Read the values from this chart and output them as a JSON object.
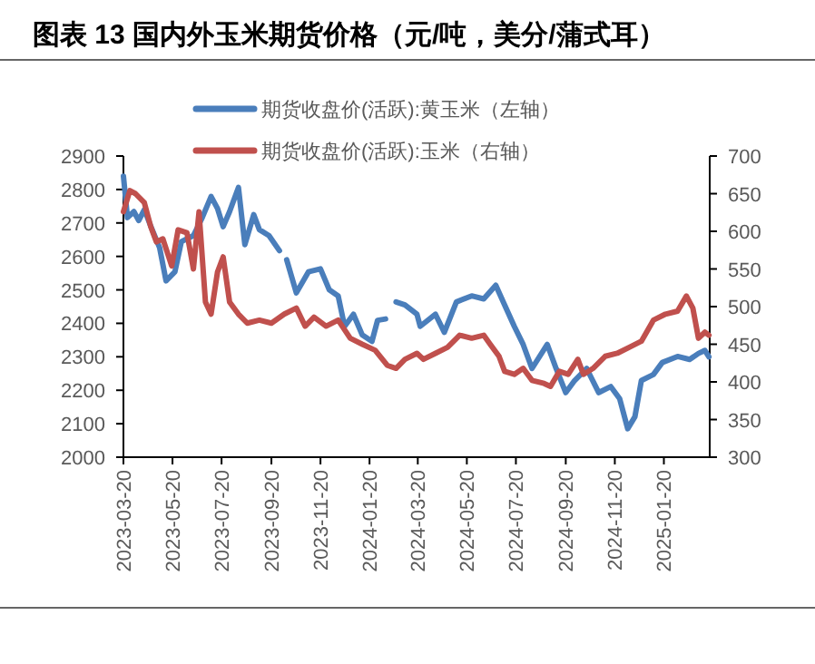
{
  "chart_data": {
    "type": "line",
    "title": "图表 13 国内外玉米期货价格（元/吨，美分/蒲式耳）",
    "legend": "top",
    "line_style": "solid",
    "xlim": [
      "2023-03-20",
      "2025-03-18"
    ],
    "xticks": [
      "2023-03-20",
      "2023-05-20",
      "2023-07-20",
      "2023-09-20",
      "2023-11-20",
      "2024-01-20",
      "2024-03-20",
      "2024-05-20",
      "2024-07-20",
      "2024-09-20",
      "2024-11-20",
      "2025-01-20"
    ],
    "ylim": [
      2000,
      2900
    ],
    "yticks": [
      2000,
      2100,
      2200,
      2300,
      2400,
      2500,
      2600,
      2700,
      2800,
      2900
    ],
    "y2lim": [
      300,
      700
    ],
    "y2ticks": [
      300,
      350,
      400,
      450,
      500,
      550,
      600,
      650,
      700
    ],
    "series": [
      {
        "name": "期货收盘价(活跃):黄玉米（左轴）",
        "color": "#4a7ebb",
        "x": [
          "2023-03-20",
          "2023-03-25",
          "2023-04-02",
          "2023-04-08",
          "2023-04-15",
          "2023-04-23",
          "2023-05-04",
          "2023-05-12",
          "2023-05-23",
          "2023-05-31",
          "2023-06-15",
          "2023-06-26",
          "2023-07-07",
          "2023-07-15",
          "2023-07-22",
          "2023-07-30",
          "2023-08-10",
          "2023-08-18",
          "2023-08-29",
          "2023-09-05",
          "2023-09-17",
          "2023-09-30",
          "2023-10-05",
          "2023-10-09",
          "2023-10-21",
          "2023-11-05",
          "2023-11-20",
          "2023-12-01",
          "2023-12-12",
          "2023-12-20",
          "2023-12-31",
          "2024-01-11",
          "2024-01-23",
          "2024-01-30",
          "2024-02-09",
          "2024-02-14",
          "2024-02-22",
          "2024-03-04",
          "2024-03-19",
          "2024-03-23",
          "2024-04-11",
          "2024-04-22",
          "2024-05-07",
          "2024-05-26",
          "2024-06-10",
          "2024-06-25",
          "2024-07-06",
          "2024-07-18",
          "2024-07-29",
          "2024-08-09",
          "2024-08-28",
          "2024-09-08",
          "2024-09-20",
          "2024-10-01",
          "2024-10-16",
          "2024-10-31",
          "2024-11-15",
          "2024-11-26",
          "2024-12-06",
          "2024-12-15",
          "2024-12-23",
          "2025-01-07",
          "2025-01-18",
          "2025-02-06",
          "2025-02-21",
          "2025-03-04",
          "2025-03-12",
          "2025-03-17"
        ],
        "values": [
          2840,
          2716,
          2734,
          2707,
          2740,
          2690,
          2626,
          2527,
          2554,
          2644,
          2662,
          2716,
          2779,
          2743,
          2689,
          2734,
          2806,
          2635,
          2725,
          2680,
          2662,
          2617,
          null,
          2590,
          2491,
          2554,
          2563,
          2500,
          2482,
          2391,
          2427,
          2365,
          2346,
          2409,
          2413,
          null,
          2464,
          2455,
          2427,
          2391,
          2427,
          2373,
          2464,
          2482,
          2473,
          2514,
          2455,
          2391,
          2337,
          2265,
          2337,
          2265,
          2193,
          2229,
          2265,
          2193,
          2211,
          2175,
          2085,
          2121,
          2229,
          2247,
          2283,
          2301,
          2292,
          2310,
          2319,
          2300
        ]
      },
      {
        "name": "期货收盘价(活跃):玉米（右轴）",
        "color": "#c0504d",
        "axis": "y2",
        "x": [
          "2023-03-20",
          "2023-03-28",
          "2023-04-04",
          "2023-04-15",
          "2023-04-23",
          "2023-04-30",
          "2023-05-08",
          "2023-05-19",
          "2023-05-27",
          "2023-06-07",
          "2023-06-15",
          "2023-06-22",
          "2023-06-30",
          "2023-07-07",
          "2023-07-15",
          "2023-07-22",
          "2023-07-30",
          "2023-08-10",
          "2023-08-21",
          "2023-09-05",
          "2023-09-20",
          "2023-10-06",
          "2023-10-21",
          "2023-11-01",
          "2023-11-12",
          "2023-11-27",
          "2023-12-12",
          "2023-12-27",
          "2024-01-11",
          "2024-01-27",
          "2024-02-11",
          "2024-02-22",
          "2024-03-04",
          "2024-03-19",
          "2024-03-27",
          "2024-04-11",
          "2024-04-26",
          "2024-05-11",
          "2024-05-26",
          "2024-06-10",
          "2024-06-18",
          "2024-06-29",
          "2024-07-06",
          "2024-07-18",
          "2024-07-29",
          "2024-08-09",
          "2024-08-24",
          "2024-09-01",
          "2024-09-12",
          "2024-09-23",
          "2024-10-05",
          "2024-10-12",
          "2024-10-24",
          "2024-11-08",
          "2024-11-23",
          "2024-12-08",
          "2024-12-23",
          "2025-01-07",
          "2025-01-22",
          "2025-02-06",
          "2025-02-17",
          "2025-02-25",
          "2025-03-04",
          "2025-03-12",
          "2025-03-17"
        ],
        "values": [
          626,
          654,
          650,
          638,
          606,
          586,
          590,
          554,
          602,
          598,
          550,
          626,
          506,
          490,
          546,
          566,
          506,
          490,
          478,
          482,
          478,
          490,
          498,
          474,
          486,
          474,
          482,
          458,
          450,
          442,
          422,
          418,
          430,
          438,
          430,
          438,
          446,
          462,
          458,
          462,
          450,
          434,
          414,
          410,
          418,
          402,
          398,
          394,
          414,
          410,
          430,
          410,
          418,
          434,
          438,
          446,
          454,
          482,
          490,
          494,
          514,
          498,
          458,
          466,
          462
        ]
      }
    ]
  }
}
